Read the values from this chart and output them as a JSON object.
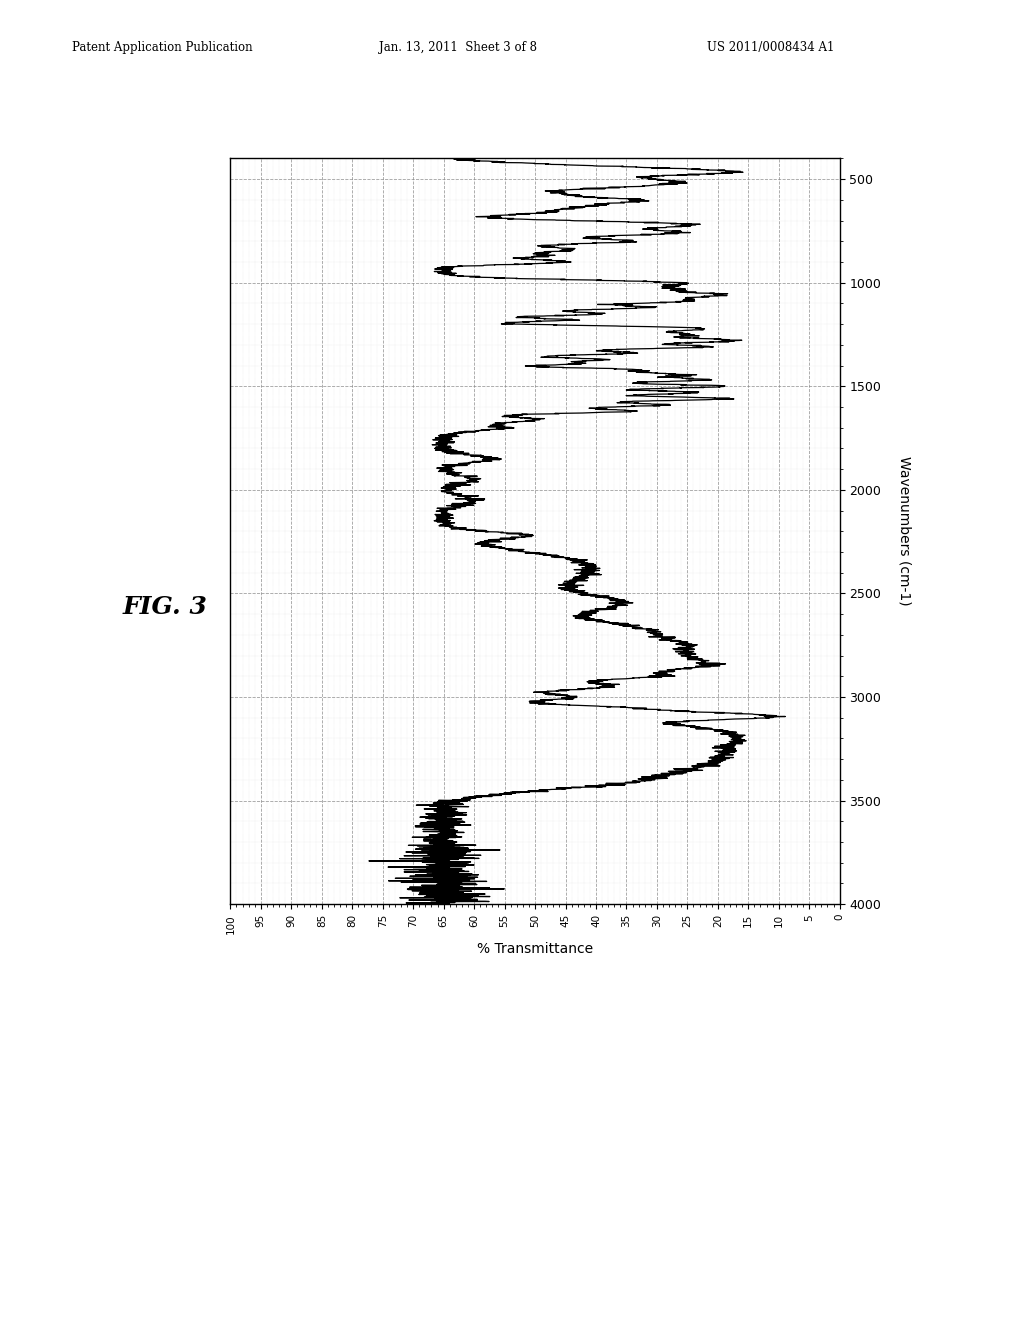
{
  "title_header_left": "Patent Application Publication",
  "title_header_mid": "Jan. 13, 2011  Sheet 3 of 8",
  "title_header_right": "US 2011/0008434 A1",
  "fig_label": "FIG. 3",
  "xlabel": "% Transmittance",
  "ylabel": "Wavenumbers (cm-1)",
  "xmin": 0,
  "xmax": 100,
  "ymin": 400,
  "ymax": 4000,
  "yticks": [
    500,
    1000,
    1500,
    2000,
    2500,
    3000,
    3500,
    4000
  ],
  "xtick_step": 5,
  "background": "#ffffff",
  "line_color": "#000000",
  "grid_major_color": "#999999",
  "grid_minor_color": "#cccccc",
  "grid_style_major": "--",
  "grid_style_minor": ":"
}
